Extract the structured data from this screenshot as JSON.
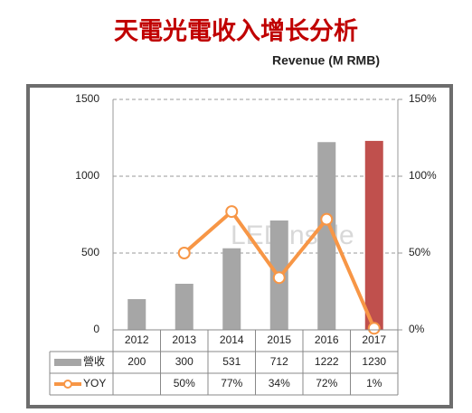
{
  "chart_data": {
    "type": "bar_line",
    "title": "天電光電收入增长分析",
    "subtitle": "Revenue (M RMB)",
    "watermark": "LEDinside",
    "categories": [
      "2012",
      "2013",
      "2014",
      "2015",
      "2016",
      "2017"
    ],
    "series": [
      {
        "name": "營收",
        "type": "bar",
        "color": "#a6a6a6",
        "colors": [
          "#a6a6a6",
          "#a6a6a6",
          "#a6a6a6",
          "#a6a6a6",
          "#a6a6a6",
          "#c0504d"
        ],
        "values": [
          200,
          300,
          531,
          712,
          1222,
          1230
        ]
      },
      {
        "name": "YOY",
        "type": "line",
        "axis": "y2",
        "color": "#f79646",
        "values": [
          null,
          50,
          77,
          34,
          72,
          1
        ],
        "value_labels": [
          null,
          "50%",
          "77%",
          "34%",
          "72%",
          "1%"
        ]
      }
    ],
    "ylim": [
      0,
      1500
    ],
    "yticks": [
      0,
      500,
      1000,
      1500
    ],
    "y2lim": [
      0,
      150
    ],
    "y2ticks": [
      {
        "value": 0,
        "label": "0%"
      },
      {
        "value": 50,
        "label": "50%"
      },
      {
        "value": 100,
        "label": "100%"
      },
      {
        "value": 150,
        "label": "150%"
      }
    ],
    "grid": true
  }
}
